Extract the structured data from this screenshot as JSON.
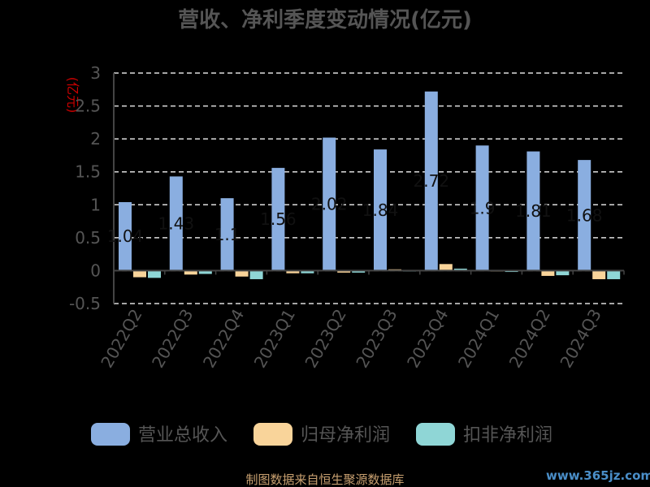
{
  "chart_data": {
    "type": "bar",
    "title": "营收、净利季度变动情况(亿元)",
    "ylabel": "(亿元)",
    "xlabel": "",
    "categories": [
      "2022Q2",
      "2022Q3",
      "2022Q4",
      "2023Q1",
      "2023Q2",
      "2023Q3",
      "2023Q4",
      "2024Q1",
      "2024Q2",
      "2024Q3"
    ],
    "series": [
      {
        "name": "营业总收入",
        "color": "#8aaee0",
        "values": [
          1.04,
          1.43,
          1.1,
          1.56,
          2.02,
          1.84,
          2.72,
          1.9,
          1.81,
          1.68
        ]
      },
      {
        "name": "归母净利润",
        "color": "#f9d49a",
        "values": [
          -0.1,
          -0.06,
          -0.09,
          -0.04,
          -0.03,
          0.02,
          0.1,
          -0.01,
          -0.08,
          -0.13
        ]
      },
      {
        "name": "扣非净利润",
        "color": "#8fd6d6",
        "values": [
          -0.11,
          -0.05,
          -0.13,
          -0.04,
          -0.03,
          -0.01,
          0.03,
          -0.02,
          -0.07,
          -0.13
        ]
      }
    ],
    "data_labels": [
      "1.04",
      "1.43",
      "1.1",
      "1.56",
      "2.02",
      "1.84",
      "2.72",
      "1.9",
      "1.81",
      "1.68"
    ],
    "ylim": [
      -0.5,
      3
    ],
    "yticks": [
      "-0.5",
      "0",
      "0.5",
      "1",
      "1.5",
      "2",
      "2.5",
      "3"
    ],
    "grid": true,
    "legend_position": "bottom"
  },
  "footer": {
    "source": "制图数据来自恒生聚源数据库",
    "watermark": "www.365jz.com"
  }
}
